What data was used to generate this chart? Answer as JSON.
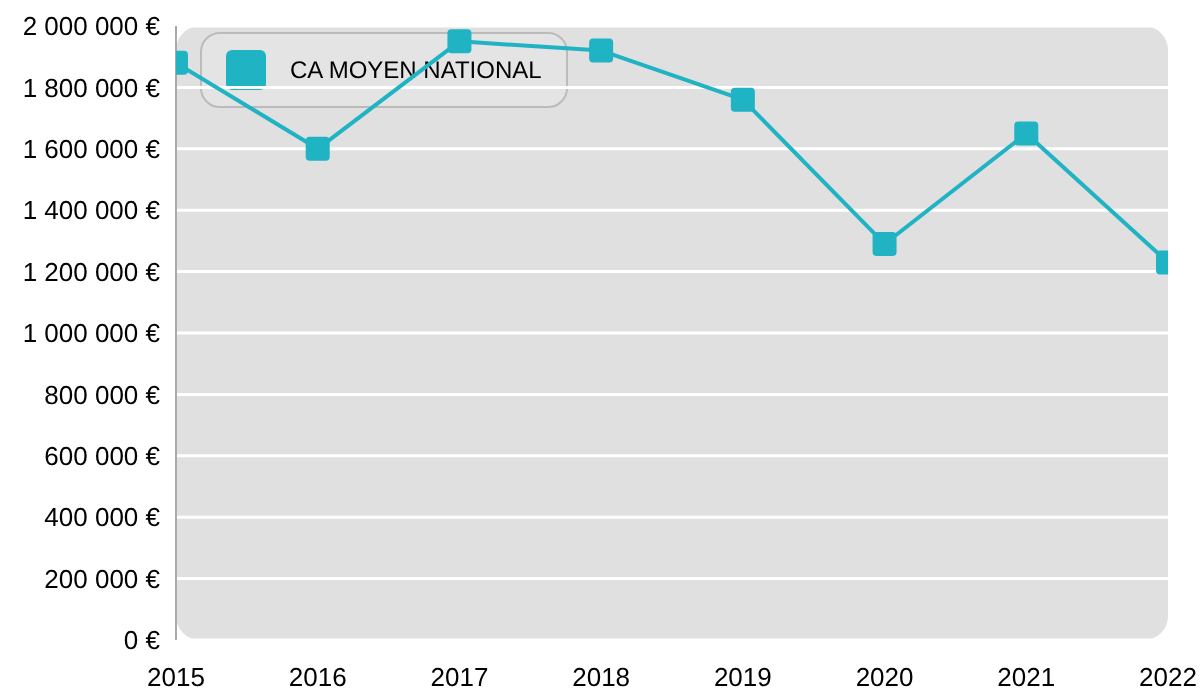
{
  "chart_data": {
    "type": "line",
    "x": [
      2015,
      2016,
      2017,
      2018,
      2019,
      2020,
      2021,
      2022
    ],
    "series": [
      {
        "name": "CA MOYEN NATIONAL",
        "color": "#1fb3c4",
        "values": [
          1880000,
          1600000,
          1950000,
          1920000,
          1760000,
          1290000,
          1650000,
          1230000
        ]
      }
    ],
    "xlim": [
      2015,
      2022
    ],
    "xticks": [
      2015,
      2016,
      2017,
      2018,
      2019,
      2020,
      2021,
      2022
    ],
    "ylim": [
      0,
      2000000
    ],
    "yticks": [
      {
        "value": 0,
        "label": "0 €"
      },
      {
        "value": 200000,
        "label": "200 000 €"
      },
      {
        "value": 400000,
        "label": "400 000 €"
      },
      {
        "value": 600000,
        "label": "600 000 €"
      },
      {
        "value": 800000,
        "label": "800 000 €"
      },
      {
        "value": 1000000,
        "label": "1 000 000 €"
      },
      {
        "value": 1200000,
        "label": "1 200 000 €"
      },
      {
        "value": 1400000,
        "label": "1 400 000 €"
      },
      {
        "value": 1600000,
        "label": "1 600 000 €"
      },
      {
        "value": 1800000,
        "label": "1 800 000 €"
      },
      {
        "value": 2000000,
        "label": "2 000 000 €"
      }
    ],
    "grid": "y",
    "legend": "top left",
    "marker": "square",
    "line_style": "solid"
  }
}
